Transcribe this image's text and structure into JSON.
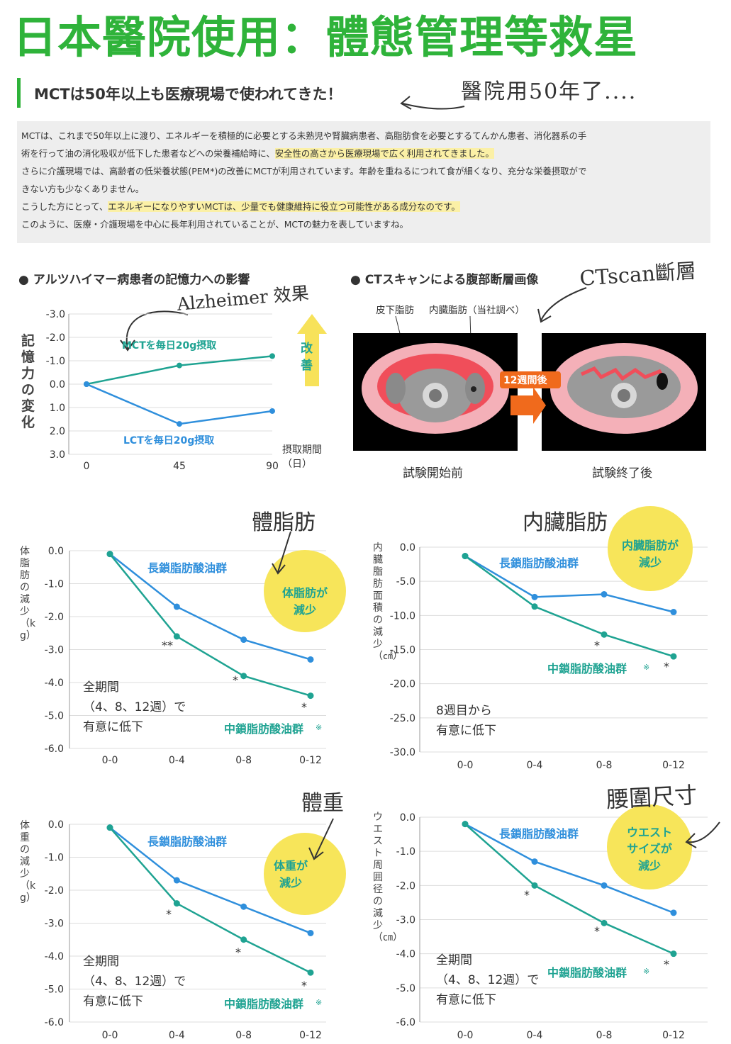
{
  "header": {
    "title": "日本醫院使用：體態管理等救星",
    "subtitle": "MCTは50年以上も医療現場で使われてきた！",
    "note": "醫院用50年了...."
  },
  "info": {
    "line1": "MCTは、これまで50年以上に渡り、エネルギーを積極的に必要とする未熟児や腎臓病患者、高脂肪食を必要とするてんかん患者、消化器系の手",
    "line2a": "術を行って油の消化吸収が低下した患者などへの栄養補給時に、",
    "line2b": "安全性の高さから医療現場で広く利用されてきました。",
    "line3": "さらに介護現場では、高齢者の低栄養状態(PEM*)の改善にMCTが利用されています。年齢を重ねるにつれて食が細くなり、充分な栄養摂取ができない方も少なくありません。",
    "line3a": "さらに介護現場では、高齢者の低栄養状態(PEM*)の改善にMCTが利用されています。年齢を重ねるにつれて食が細くなり、充分な栄養摂取がで",
    "line3b": "きない方も少なくありません。",
    "line4a": "こうした方にとって、",
    "line4b": "エネルギーになりやすいMCTは、少量でも健康維持に役立つ可能性がある成分なのです。",
    "line5": "このように、医療・介護現場を中心に長年利用されていることが、MCTの魅力を表していますね。"
  },
  "alz": {
    "heading": "● アルツハイマー病患者の記憶力への影響",
    "note": "Alzheimer 效果",
    "ylabel": "記憶力の変化",
    "xlabel": "摂取期間（日）",
    "xlabel1": "摂取期間",
    "xlabel2": "（日）",
    "arrow_label1": "改",
    "arrow_label2": "善",
    "mct_label": "MCTを毎日20g摂取",
    "lct_label": "LCTを毎日20g摂取"
  },
  "ct": {
    "heading": "● CTスキャンによる腹部断層画像",
    "note": "CTscan斷層",
    "label_skin": "皮下脂肪",
    "label_visc": "内臓脂肪（当社調べ）",
    "arrow_text": "12週間後",
    "before": "試験開始前",
    "after": "試験終了後"
  },
  "colors": {
    "green_title": "#2fb33a",
    "lct_blue": "#2f8fdc",
    "mct_teal": "#1fa392",
    "bubble": "#f7e55a",
    "arrow_yellow": "#f7e25a",
    "ct_red": "#f04e5a",
    "ct_orange": "#f06a1c"
  },
  "charts": {
    "bodyfat": {
      "note": "體脂肪",
      "ylabel": "体脂肪の減少（kg）",
      "bubble1": "体脂肪が",
      "bubble2": "減少",
      "lct_label": "長鎖脂肪酸油群",
      "mct_label": "中鎖脂肪酸油群",
      "mct_mark": "※",
      "desc1": "全期間",
      "desc2": "（4、8、12週）で",
      "desc3": "有意に低下",
      "sig": [
        "**",
        "*",
        "*"
      ]
    },
    "visceral": {
      "note": "内臟脂肪",
      "ylabel": "内臓脂肪面積の減少（㎠）",
      "bubble1": "内臓脂肪が",
      "bubble2": "減少",
      "lct_label": "長鎖脂肪酸油群",
      "mct_label": "中鎖脂肪酸油群",
      "mct_mark": "※",
      "desc1": "8週目から",
      "desc2": "有意に低下",
      "sig": [
        "*",
        "*"
      ]
    },
    "weight": {
      "note": "體重",
      "ylabel": "体重の減少（kg）",
      "bubble1": "体重が",
      "bubble2": "減少",
      "lct_label": "長鎖脂肪酸油群",
      "mct_label": "中鎖脂肪酸油群",
      "mct_mark": "※",
      "desc1": "全期間",
      "desc2": "（4、8、12週）で",
      "desc3": "有意に低下",
      "sig": [
        "*",
        "*",
        "*"
      ]
    },
    "waist": {
      "note": "腰圍尺寸",
      "ylabel": "ウエスト周囲径の減少（㎝）",
      "bubble1": "ウエスト",
      "bubble2": "サイズが",
      "bubble3": "減少",
      "lct_label": "長鎖脂肪酸油群",
      "mct_label": "中鎖脂肪酸油群",
      "mct_mark": "※",
      "desc1": "全期間",
      "desc2": "（4、8、12週）で",
      "desc3": "有意に低下",
      "sig": [
        "*",
        "*",
        "*"
      ]
    }
  },
  "chart_data": [
    {
      "type": "line",
      "ylabel": "記憶力の変化",
      "xlabel": "摂取期間（日）",
      "x": [
        0,
        45,
        90
      ],
      "y_tick_labels": [
        "-3.0",
        "-2.0",
        "-1.0",
        "0.0",
        "1.0",
        "2.0",
        "3.0"
      ],
      "ylim": [
        3.0,
        -3.0
      ],
      "inverted_y": true,
      "grid": "horizontal",
      "series": [
        {
          "name": "MCTを毎日20g摂取",
          "values": [
            0.0,
            -0.8,
            -1.2
          ]
        },
        {
          "name": "LCTを毎日20g摂取",
          "values": [
            0.0,
            1.7,
            1.15
          ]
        }
      ]
    },
    {
      "type": "line",
      "ylabel": "体脂肪の減少（kg）",
      "categories": [
        "0-0",
        "0-4",
        "0-8",
        "0-12"
      ],
      "y_ticks": [
        "0.0",
        "-1.0",
        "-2.0",
        "-3.0",
        "-4.0",
        "-5.0",
        "-6.0"
      ],
      "ylim": [
        -6.0,
        0.0
      ],
      "grid": "horizontal",
      "series": [
        {
          "name": "長鎖脂肪酸油群",
          "values": [
            -0.1,
            -1.7,
            -2.7,
            -3.3
          ]
        },
        {
          "name": "中鎖脂肪酸油群",
          "values": [
            -0.1,
            -2.6,
            -3.8,
            -4.4
          ]
        }
      ]
    },
    {
      "type": "line",
      "ylabel": "内臓脂肪面積の減少（㎠）",
      "categories": [
        "0-0",
        "0-4",
        "0-8",
        "0-12"
      ],
      "y_ticks": [
        "0.0",
        "-5.0",
        "-10.0",
        "-15.0",
        "-20.0",
        "-25.0",
        "-30.0"
      ],
      "ylim": [
        -30.0,
        0.0
      ],
      "grid": "horizontal",
      "series": [
        {
          "name": "長鎖脂肪酸油群",
          "values": [
            -1.3,
            -7.3,
            -6.9,
            -9.5
          ]
        },
        {
          "name": "中鎖脂肪酸油群",
          "values": [
            -1.3,
            -8.7,
            -12.8,
            -16.0
          ]
        }
      ]
    },
    {
      "type": "line",
      "ylabel": "体重の減少（kg）",
      "categories": [
        "0-0",
        "0-4",
        "0-8",
        "0-12"
      ],
      "y_ticks": [
        "0.0",
        "-1.0",
        "-2.0",
        "-3.0",
        "-4.0",
        "-5.0",
        "-6.0"
      ],
      "ylim": [
        -6.0,
        0.0
      ],
      "grid": "horizontal",
      "series": [
        {
          "name": "長鎖脂肪酸油群",
          "values": [
            -0.1,
            -1.7,
            -2.5,
            -3.3
          ]
        },
        {
          "name": "中鎖脂肪酸油群",
          "values": [
            -0.1,
            -2.4,
            -3.5,
            -4.5
          ]
        }
      ]
    },
    {
      "type": "line",
      "ylabel": "ウエスト周囲径の減少（㎝）",
      "categories": [
        "0-0",
        "0-4",
        "0-8",
        "0-12"
      ],
      "y_ticks": [
        "0.0",
        "-1.0",
        "-2.0",
        "-3.0",
        "-4.0",
        "-5.0",
        "-6.0"
      ],
      "ylim": [
        -6.0,
        0.0
      ],
      "grid": "horizontal",
      "series": [
        {
          "name": "長鎖脂肪酸油群",
          "values": [
            -0.2,
            -1.3,
            -2.0,
            -2.8
          ]
        },
        {
          "name": "中鎖脂肪酸油群",
          "values": [
            -0.2,
            -2.0,
            -3.1,
            -4.0
          ]
        }
      ]
    }
  ]
}
